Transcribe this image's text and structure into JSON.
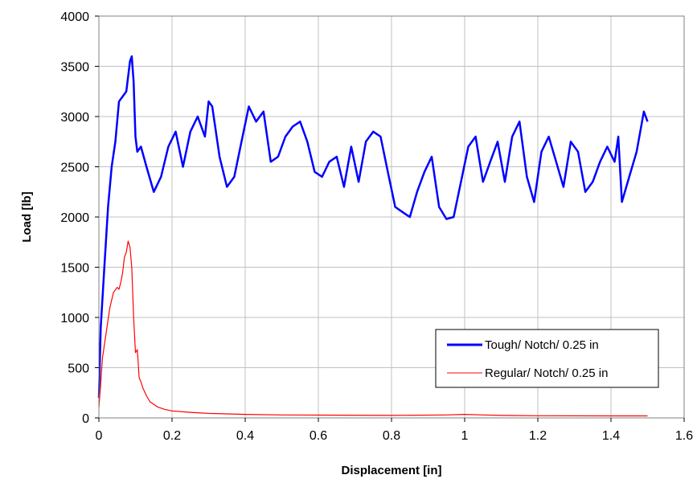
{
  "chart_data": {
    "type": "line",
    "xlabel": "Displacement [in]",
    "ylabel": "Load [lb]",
    "xlim": [
      0,
      1.6
    ],
    "ylim": [
      0,
      4000
    ],
    "xticks": [
      "0",
      "0.2",
      "0.4",
      "0.6",
      "0.8",
      "1",
      "1.2",
      "1.4",
      "1.6"
    ],
    "yticks": [
      "0",
      "500",
      "1000",
      "1500",
      "2000",
      "2500",
      "3000",
      "3500",
      "4000"
    ],
    "grid": true,
    "legend_position": "lower-right",
    "series": [
      {
        "name": "Tough/ Notch/ 0.25 in",
        "color": "#0000ff",
        "x": [
          0,
          0.005,
          0.015,
          0.025,
          0.035,
          0.045,
          0.055,
          0.065,
          0.075,
          0.085,
          0.09,
          0.095,
          0.1,
          0.105,
          0.115,
          0.13,
          0.15,
          0.17,
          0.19,
          0.21,
          0.23,
          0.25,
          0.27,
          0.29,
          0.3,
          0.31,
          0.33,
          0.35,
          0.37,
          0.39,
          0.41,
          0.43,
          0.45,
          0.47,
          0.49,
          0.51,
          0.53,
          0.55,
          0.57,
          0.59,
          0.61,
          0.63,
          0.65,
          0.67,
          0.69,
          0.71,
          0.73,
          0.75,
          0.77,
          0.79,
          0.81,
          0.83,
          0.85,
          0.87,
          0.89,
          0.91,
          0.93,
          0.95,
          0.97,
          0.99,
          1.01,
          1.03,
          1.05,
          1.07,
          1.09,
          1.11,
          1.13,
          1.15,
          1.17,
          1.19,
          1.21,
          1.23,
          1.25,
          1.27,
          1.29,
          1.31,
          1.33,
          1.35,
          1.37,
          1.39,
          1.41,
          1.42,
          1.43,
          1.45,
          1.47,
          1.49,
          1.5
        ],
        "y": [
          200,
          900,
          1500,
          2100,
          2500,
          2750,
          3150,
          3200,
          3250,
          3550,
          3600,
          3350,
          2800,
          2650,
          2700,
          2500,
          2250,
          2400,
          2700,
          2850,
          2500,
          2850,
          3000,
          2800,
          3150,
          3100,
          2600,
          2300,
          2400,
          2750,
          3100,
          2950,
          3050,
          2550,
          2600,
          2800,
          2900,
          2950,
          2750,
          2450,
          2400,
          2550,
          2600,
          2300,
          2700,
          2350,
          2750,
          2850,
          2800,
          2450,
          2100,
          2050,
          2000,
          2250,
          2450,
          2600,
          2100,
          1980,
          2000,
          2350,
          2700,
          2800,
          2350,
          2550,
          2750,
          2350,
          2800,
          2950,
          2400,
          2150,
          2650,
          2800,
          2550,
          2300,
          2750,
          2650,
          2250,
          2350,
          2550,
          2700,
          2550,
          2800,
          2150,
          2400,
          2650,
          3050,
          2950
        ]
      },
      {
        "name": "Regular/ Notch/ 0.25 in",
        "color": "#ff0000",
        "x": [
          0,
          0.005,
          0.01,
          0.02,
          0.03,
          0.04,
          0.05,
          0.055,
          0.06,
          0.065,
          0.07,
          0.075,
          0.08,
          0.085,
          0.09,
          0.095,
          0.1,
          0.105,
          0.11,
          0.115,
          0.12,
          0.13,
          0.14,
          0.16,
          0.18,
          0.2,
          0.25,
          0.3,
          0.35,
          0.4,
          0.5,
          0.6,
          0.8,
          0.95,
          1.0,
          1.05,
          1.1,
          1.2,
          1.4,
          1.5
        ],
        "y": [
          100,
          350,
          600,
          850,
          1100,
          1250,
          1300,
          1280,
          1350,
          1450,
          1600,
          1650,
          1760,
          1700,
          1500,
          1000,
          650,
          680,
          400,
          360,
          300,
          220,
          160,
          110,
          85,
          70,
          55,
          45,
          40,
          35,
          30,
          28,
          25,
          30,
          35,
          30,
          25,
          22,
          20,
          20
        ]
      }
    ]
  }
}
